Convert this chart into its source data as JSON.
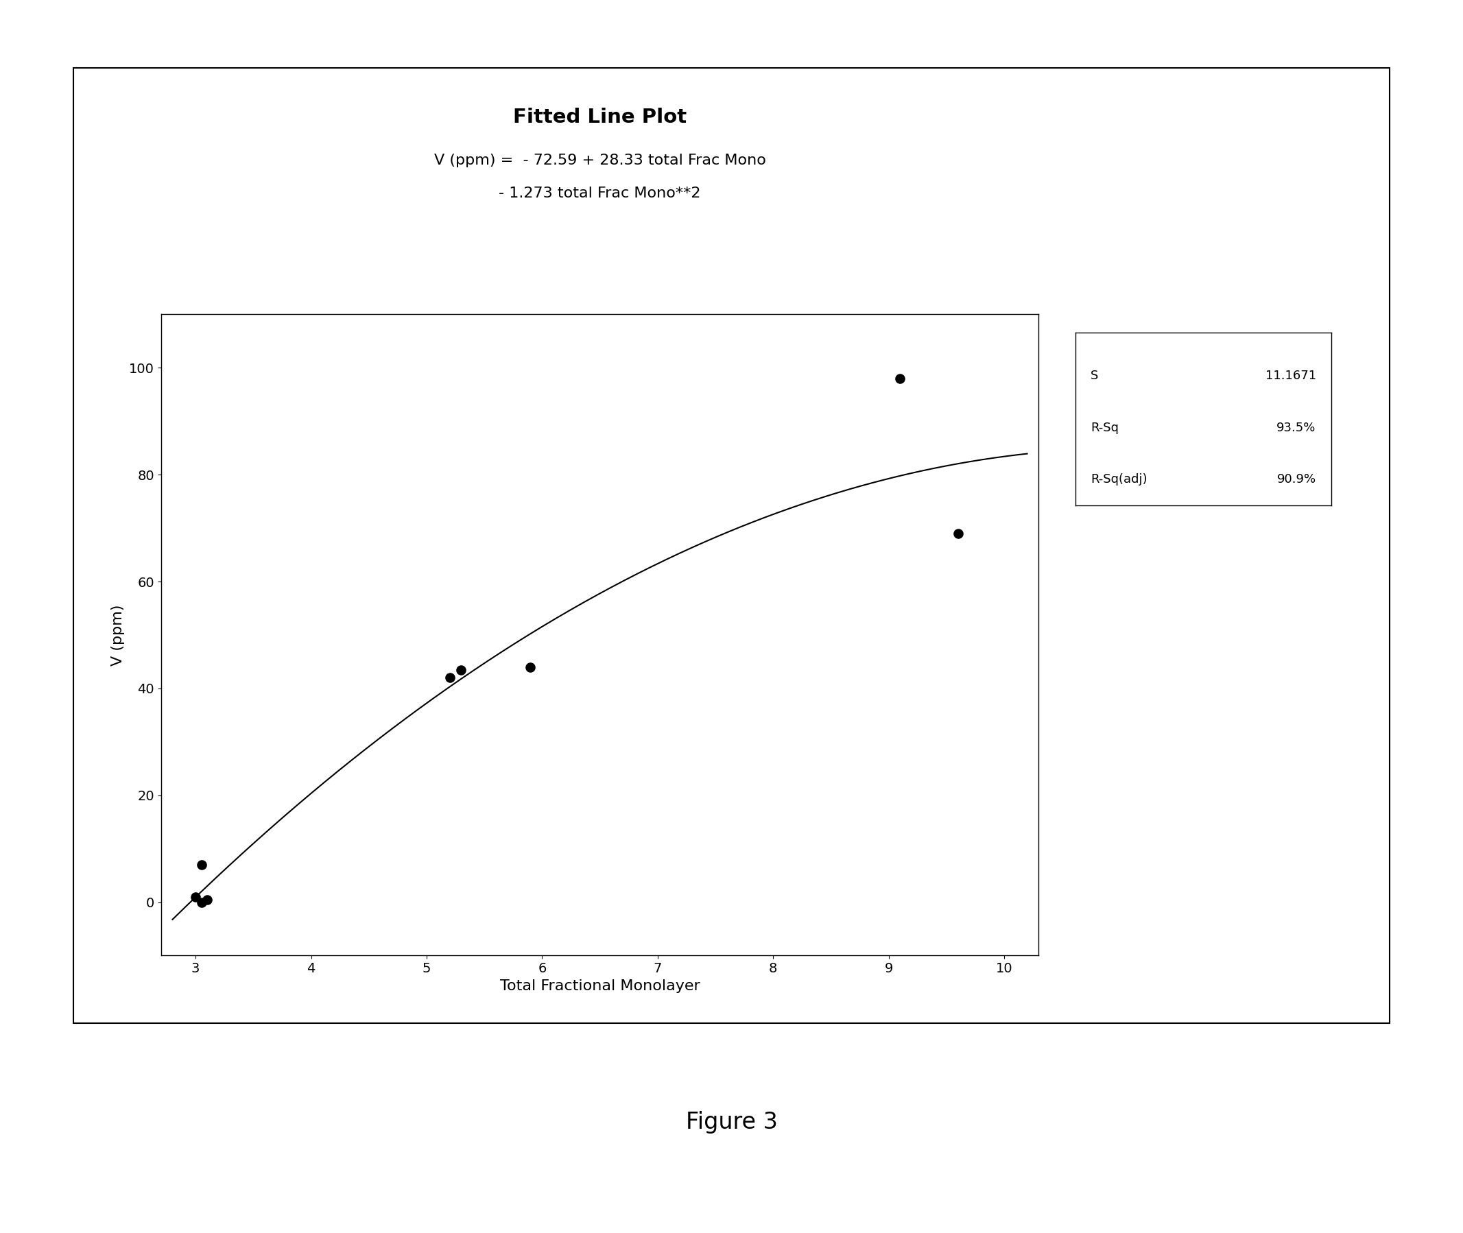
{
  "title_main": "Fitted Line Plot",
  "title_eq1": "V (ppm) =  - 72.59 + 28.33 total Frac Mono",
  "title_eq2": "- 1.273 total Frac Mono**2",
  "xlabel": "Total Fractional Monolayer",
  "ylabel": "V (ppm)",
  "scatter_x": [
    3.0,
    3.05,
    3.1,
    3.05,
    5.2,
    5.3,
    5.9,
    9.1,
    9.6
  ],
  "scatter_y": [
    1.0,
    0.0,
    0.5,
    7.0,
    42.0,
    43.5,
    44.0,
    98.0,
    69.0
  ],
  "coeff_a": -72.59,
  "coeff_b": 28.33,
  "coeff_c": -1.273,
  "x_min": 2.8,
  "x_max": 10.2,
  "xlim": [
    2.7,
    10.3
  ],
  "ylim": [
    -10,
    110
  ],
  "xticks": [
    3,
    4,
    5,
    6,
    7,
    8,
    9,
    10
  ],
  "yticks": [
    0,
    20,
    40,
    60,
    80,
    100
  ],
  "stats_S_label": "S",
  "stats_S": "11.1671",
  "stats_Rsq_label": "R-Sq",
  "stats_Rsq": "93.5%",
  "stats_Rsq_adj_label": "R-Sq(adj)",
  "stats_Rsq_adj": "90.9%",
  "figure_caption": "Figure 3",
  "dot_color": "#000000",
  "line_color": "#000000",
  "bg_color": "#ffffff",
  "title_fontsize": 21,
  "subtitle_fontsize": 16,
  "axis_label_fontsize": 16,
  "tick_fontsize": 14,
  "stats_fontsize": 13,
  "caption_fontsize": 24
}
